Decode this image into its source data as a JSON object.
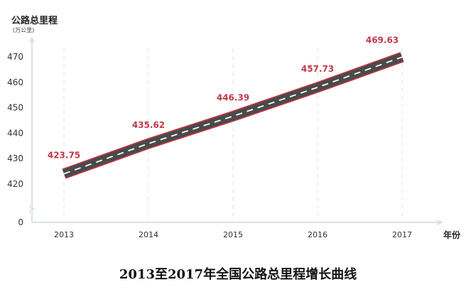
{
  "chart_data": {
    "type": "line",
    "title": "2013至2017年全国公路总里程增长曲线",
    "ylabel": "公路总里程",
    "yunit": "(万公里)",
    "xlabel": "年份",
    "categories": [
      "2013",
      "2014",
      "2015",
      "2016",
      "2017"
    ],
    "values": [
      423.75,
      435.62,
      446.39,
      457.73,
      469.63
    ],
    "data_labels": [
      "423.75",
      "435.62",
      "446.39",
      "457.73",
      "469.63"
    ],
    "yticks": [
      "470",
      "460",
      "450",
      "440",
      "430",
      "420",
      "0"
    ],
    "ylim": [
      0,
      475
    ],
    "axis_break": true,
    "grid": "vertical dashed",
    "colors": {
      "road": "#4a4a4a",
      "road_edge": "#d0343c",
      "lane": "#ffffff",
      "label": "#c0394a",
      "axis": "#c9d8e6"
    }
  }
}
